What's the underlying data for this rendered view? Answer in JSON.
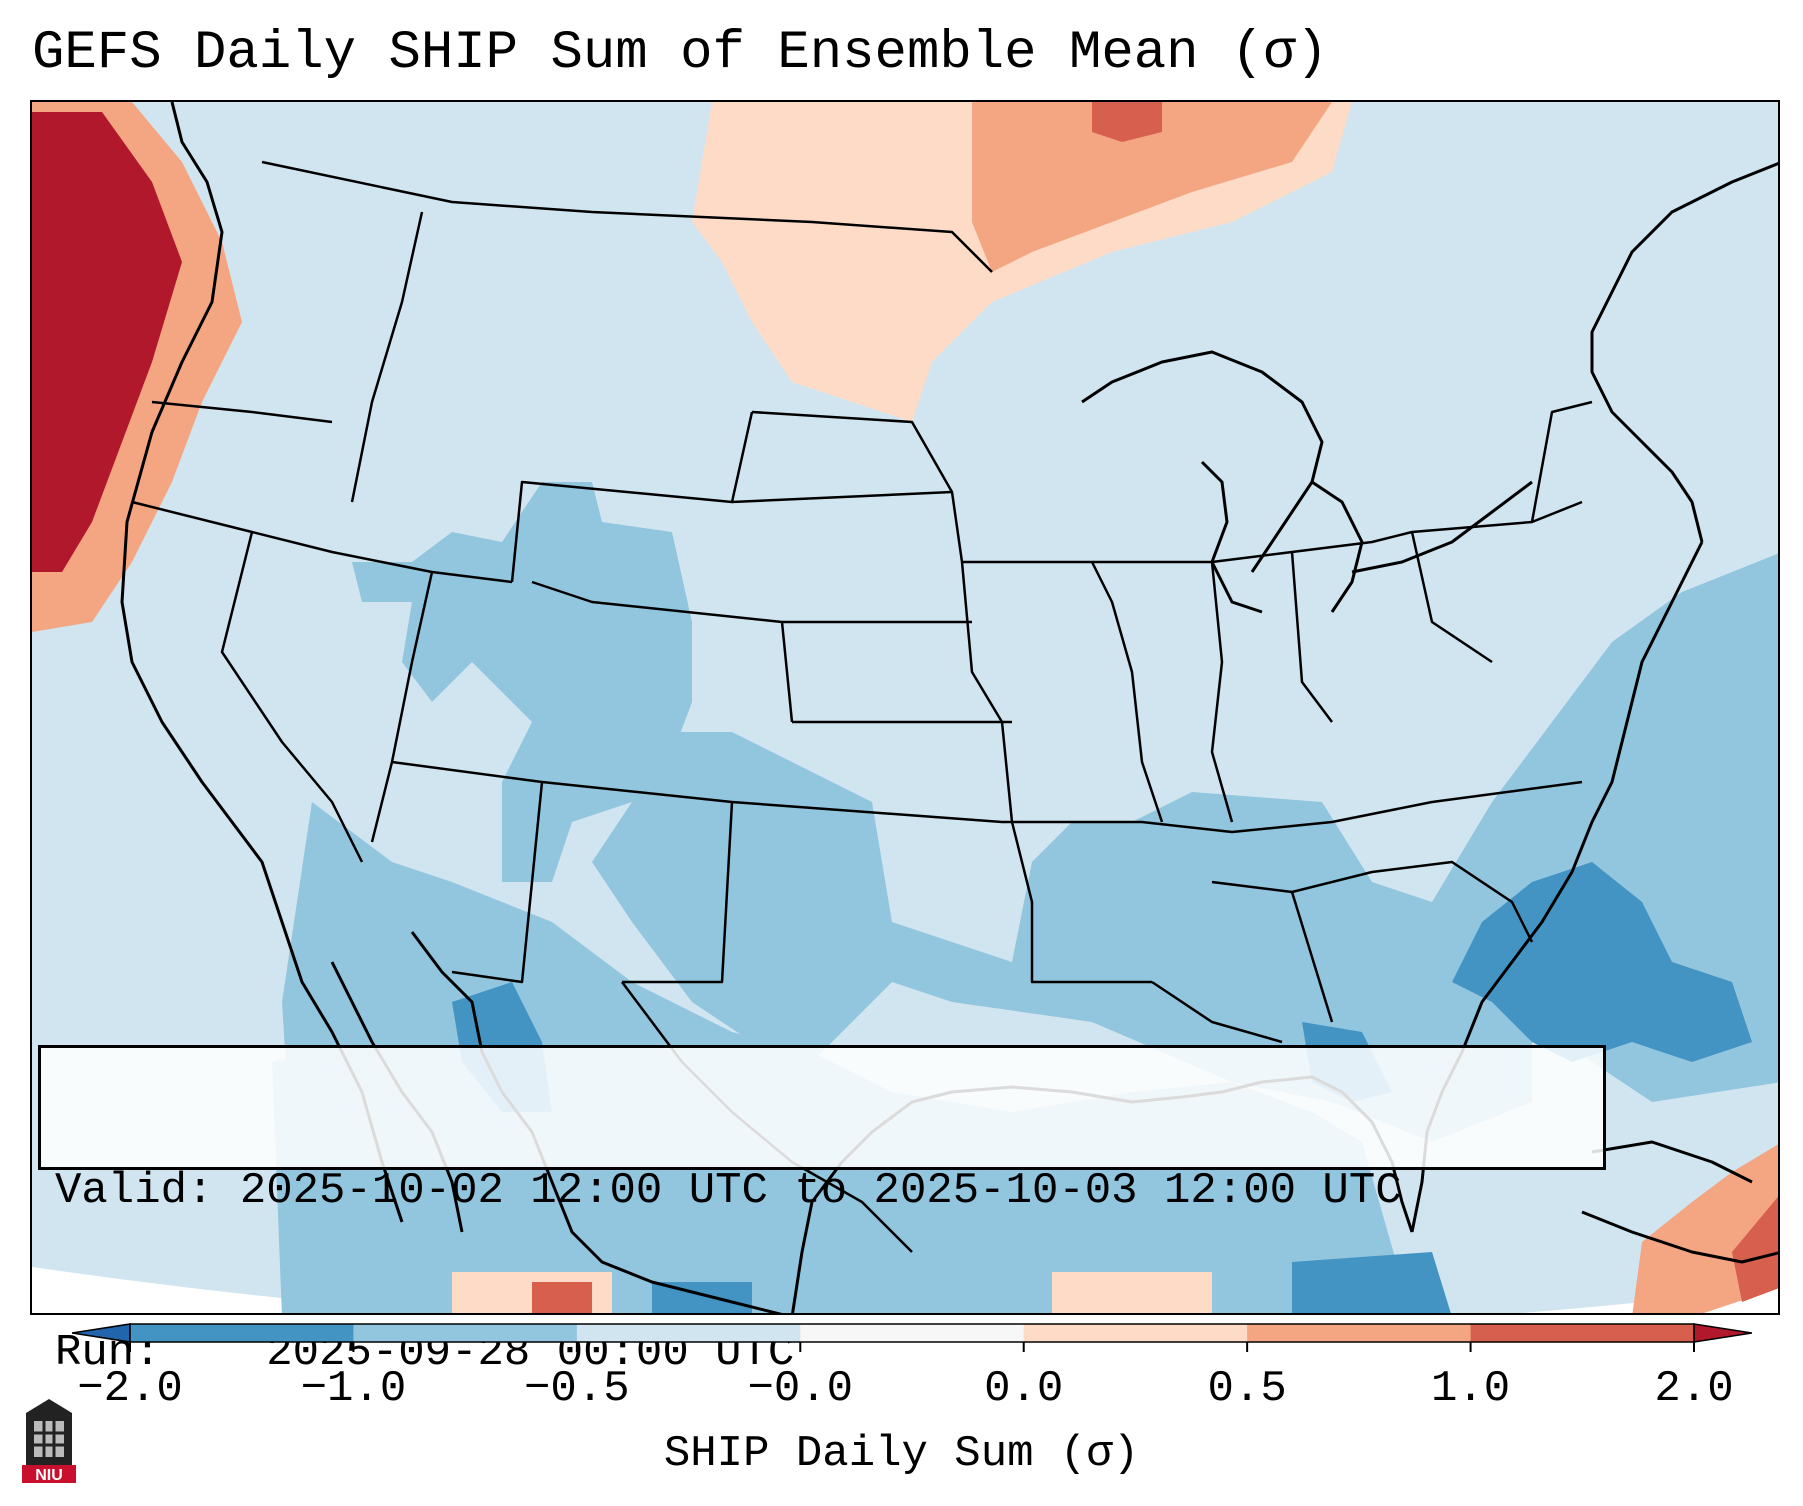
{
  "title": "GEFS Daily SHIP Sum of Ensemble Mean (σ)",
  "info": {
    "valid_label": "Valid:",
    "valid_value": "2025-10-02 12:00 UTC to 2025-10-03 12:00 UTC",
    "run_label": "Run:",
    "run_value": "2025-09-28 00:00 UTC"
  },
  "colorbar": {
    "label": "SHIP Daily Sum (σ)",
    "ticks": [
      "−2.0",
      "−1.0",
      "−0.5",
      "−0.0",
      "0.0",
      "0.5",
      "1.0",
      "2.0"
    ],
    "colors": [
      "#4393c3",
      "#92c5de",
      "#d1e5f0",
      "#f7f7f7",
      "#fddbc7",
      "#f4a582",
      "#d6604d"
    ],
    "under_color": "#2166ac",
    "over_color": "#b2182b"
  },
  "logo": {
    "text": "NIU",
    "icon": "niu-logo-icon"
  },
  "colors": {
    "background_field": "#d1e5f0",
    "border": "#000000"
  }
}
